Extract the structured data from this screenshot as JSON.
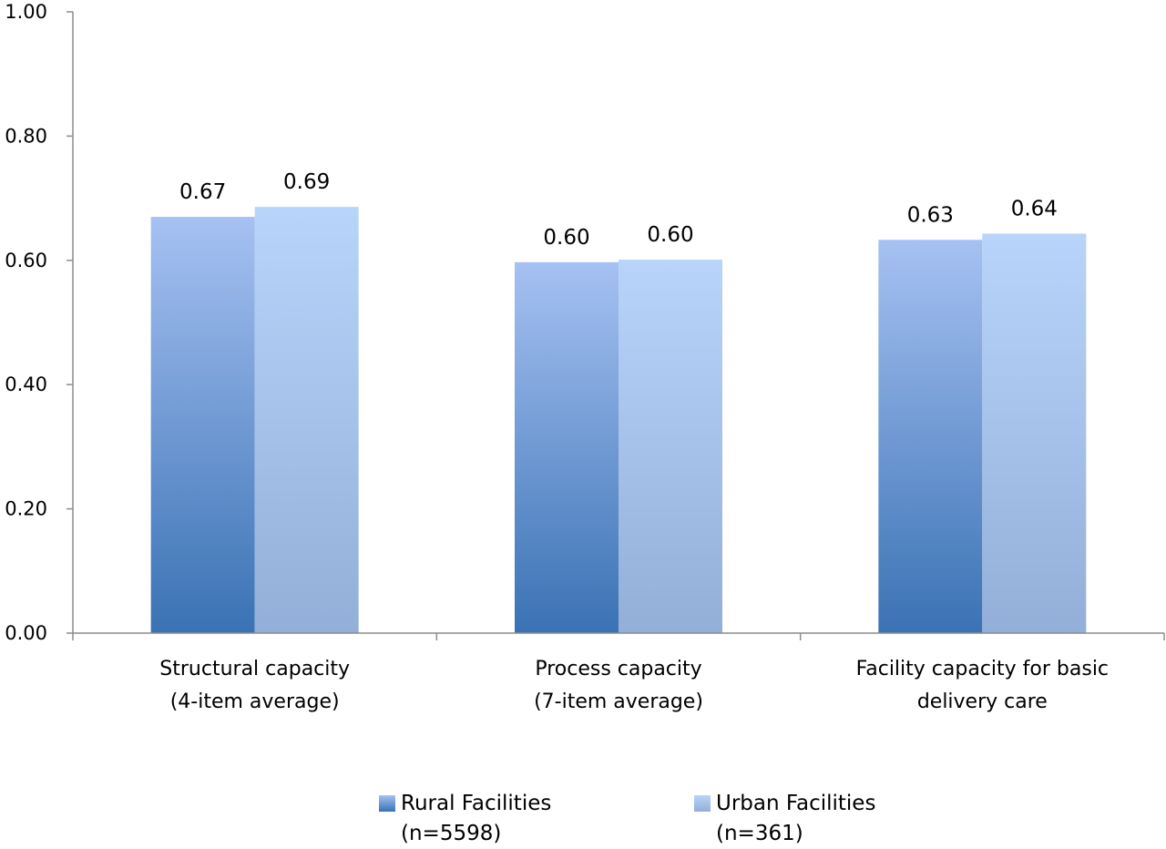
{
  "chart_data": {
    "type": "bar",
    "categories": [
      [
        "Structural capacity",
        "(4-item average)"
      ],
      [
        "Process capacity",
        "(7-item average)"
      ],
      [
        "Facility capacity for basic",
        "delivery care"
      ]
    ],
    "series": [
      {
        "name": "Rural  Facilities",
        "name_line2": "(n=5598)",
        "values": [
          0.67,
          0.597,
          0.633
        ],
        "labels": [
          "0.67",
          "0.60",
          "0.63"
        ],
        "color_top": "#a6c1f2",
        "color_bottom": "#3a72b4"
      },
      {
        "name": "Urban  Facilities",
        "name_line2": "(n=361)",
        "values": [
          0.686,
          0.601,
          0.643
        ],
        "labels": [
          "0.69",
          "0.60",
          "0.64"
        ],
        "color_top": "#b8d4fa",
        "color_bottom": "#93afd9"
      }
    ],
    "ylim": [
      0,
      1
    ],
    "yticks": [
      "0.00",
      "0.20",
      "0.40",
      "0.60",
      "0.80",
      "1.00"
    ],
    "title": "",
    "xlabel": "",
    "ylabel": "",
    "grid": false,
    "legend_position": "bottom"
  }
}
